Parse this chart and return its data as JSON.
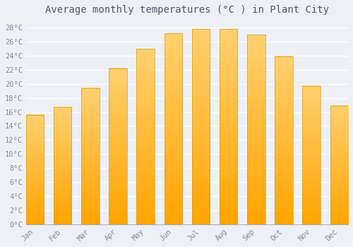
{
  "title": "Average monthly temperatures (°C ) in Plant City",
  "months": [
    "Jan",
    "Feb",
    "Mar",
    "Apr",
    "May",
    "Jun",
    "Jul",
    "Aug",
    "Sep",
    "Oct",
    "Nov",
    "Dec"
  ],
  "values": [
    15.6,
    16.7,
    19.4,
    22.2,
    25.0,
    27.2,
    27.8,
    27.8,
    27.0,
    23.9,
    19.7,
    16.9
  ],
  "bar_color_bottom": "#FFA500",
  "bar_color_top": "#FFD070",
  "bar_edge_color": "#CCA020",
  "background_color": "#EEF0F8",
  "grid_color": "#FFFFFF",
  "text_color": "#888899",
  "title_color": "#555566",
  "ylim": [
    0,
    29
  ],
  "ytick_values": [
    0,
    2,
    4,
    6,
    8,
    10,
    12,
    14,
    16,
    18,
    20,
    22,
    24,
    26,
    28
  ],
  "title_fontsize": 10,
  "tick_fontsize": 7.5
}
